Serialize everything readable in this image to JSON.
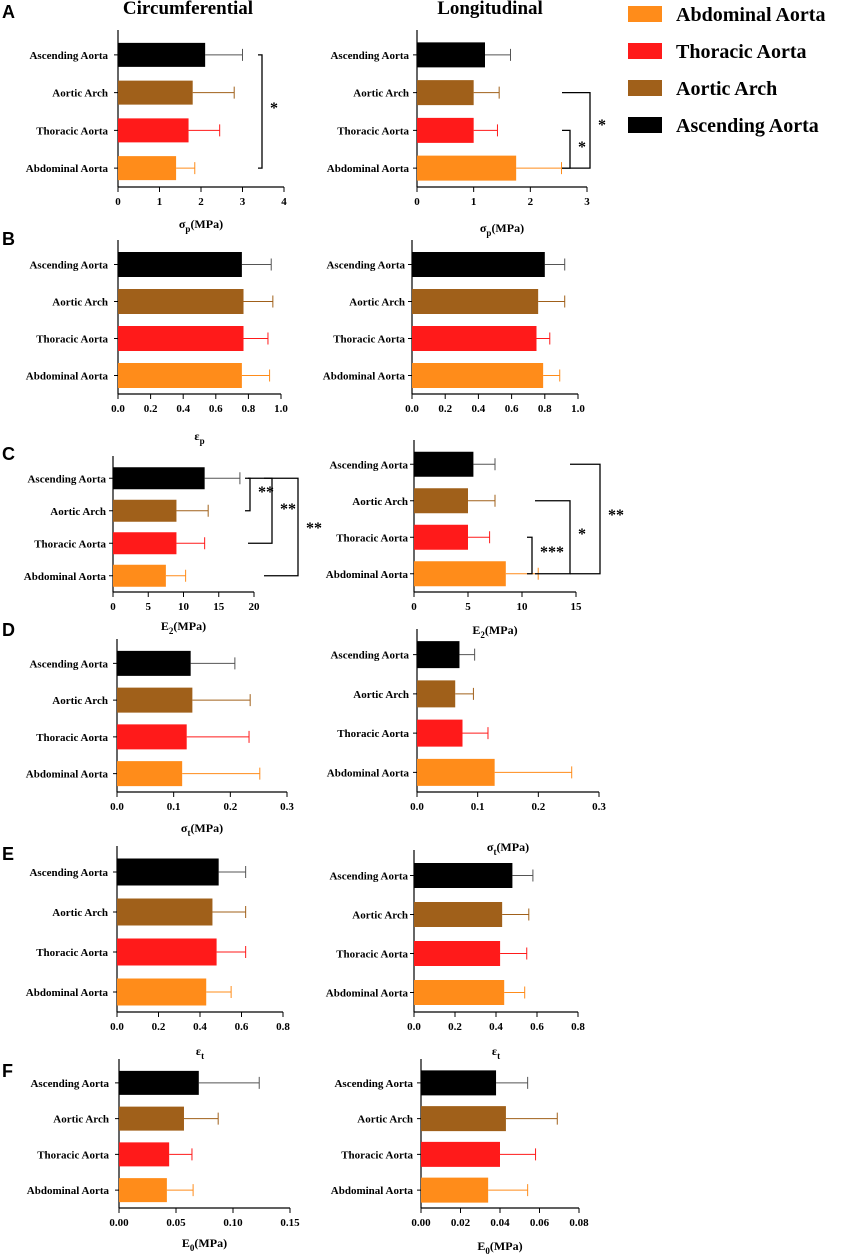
{
  "column_headers": {
    "circumferential": "Circumferential",
    "longitudinal": "Longitudinal"
  },
  "legend": [
    {
      "label": "Abdominal Aorta",
      "color": "#ff8c1a"
    },
    {
      "label": "Thoracic Aorta",
      "color": "#ff1a1a"
    },
    {
      "label": "Aortic Arch",
      "color": "#a0601a"
    },
    {
      "label": "Ascending Aorta",
      "color": "#000000"
    }
  ],
  "chart_data": [
    {
      "type": "bar",
      "orientation": "horizontal",
      "panel": "A",
      "xlabel_main": "σ",
      "xlabel_sub": "p",
      "xlabel_tail": "(MPa)",
      "categories": [
        "Ascending Aorta",
        "Aortic Arch",
        "Thoracic Aorta",
        "Abdominal Aorta"
      ],
      "values": [
        2.1,
        1.8,
        1.7,
        1.4
      ],
      "errors": [
        0.9,
        1.0,
        0.75,
        0.45
      ],
      "xlim": [
        0,
        4
      ],
      "ticks": [
        "0",
        "1",
        "2",
        "3",
        "4"
      ],
      "significance": [
        {
          "from": 0,
          "to": 3,
          "label": "*"
        }
      ]
    },
    {
      "type": "bar",
      "orientation": "horizontal",
      "panel": "",
      "xlabel_main": "σ",
      "xlabel_sub": "p",
      "xlabel_tail": "(MPa)",
      "categories": [
        "Ascending Aorta",
        "Aortic Arch",
        "Thoracic Aorta",
        "Abdominal Aorta"
      ],
      "values": [
        1.2,
        1.0,
        1.0,
        1.75
      ],
      "errors": [
        0.45,
        0.45,
        0.42,
        0.8
      ],
      "xlim": [
        0,
        3
      ],
      "ticks": [
        "0",
        "1",
        "2",
        "3"
      ],
      "significance": [
        {
          "from": 1,
          "to": 3,
          "label": "*"
        },
        {
          "from": 2,
          "to": 3,
          "label": "*"
        }
      ]
    },
    {
      "type": "bar",
      "orientation": "horizontal",
      "panel": "B",
      "xlabel_main": "ε",
      "xlabel_sub": "p",
      "xlabel_tail": "",
      "categories": [
        "Ascending Aorta",
        "Aortic Arch",
        "Thoracic Aorta",
        "Abdominal Aorta"
      ],
      "values": [
        0.76,
        0.77,
        0.77,
        0.76
      ],
      "errors": [
        0.18,
        0.18,
        0.15,
        0.17
      ],
      "xlim": [
        0,
        1
      ],
      "ticks": [
        "0.0",
        "0.2",
        "0.4",
        "0.6",
        "0.8",
        "1.0"
      ],
      "significance": []
    },
    {
      "type": "bar",
      "orientation": "horizontal",
      "panel": "",
      "xlabel_main": "",
      "xlabel_sub": "",
      "xlabel_tail": "",
      "categories": [
        "Ascending Aorta",
        "Aortic Arch",
        "Thoracic Aorta",
        "Abdominal Aorta"
      ],
      "values": [
        0.8,
        0.76,
        0.75,
        0.79
      ],
      "errors": [
        0.12,
        0.16,
        0.08,
        0.1
      ],
      "xlim": [
        0,
        1
      ],
      "ticks": [
        "0.0",
        "0.2",
        "0.4",
        "0.6",
        "0.8",
        "1.0"
      ],
      "significance": []
    },
    {
      "type": "bar",
      "orientation": "horizontal",
      "panel": "C",
      "xlabel_main": "E",
      "xlabel_sub": "2",
      "xlabel_tail": "(MPa)",
      "categories": [
        "Ascending Aorta",
        "Aortic Arch",
        "Thoracic Aorta",
        "Abdominal Aorta"
      ],
      "values": [
        13,
        9,
        9,
        7.5
      ],
      "errors": [
        5,
        4.5,
        4,
        2.8
      ],
      "xlim": [
        0,
        20
      ],
      "ticks": [
        "0",
        "5",
        "10",
        "15",
        "20"
      ],
      "significance": [
        {
          "from": 0,
          "to": 1,
          "label": "**"
        },
        {
          "from": 0,
          "to": 2,
          "label": "**"
        },
        {
          "from": 0,
          "to": 3,
          "label": "**"
        }
      ]
    },
    {
      "type": "bar",
      "orientation": "horizontal",
      "panel": "",
      "xlabel_main": "E",
      "xlabel_sub": "2",
      "xlabel_tail": "(MPa)",
      "categories": [
        "Ascending Aorta",
        "Aortic Arch",
        "Thoracic Aorta",
        "Abdominal Aorta"
      ],
      "values": [
        5.5,
        5,
        5,
        8.5
      ],
      "errors": [
        2,
        2.5,
        2,
        3
      ],
      "xlim": [
        0,
        15
      ],
      "ticks": [
        "0",
        "5",
        "10",
        "15"
      ],
      "significance": [
        {
          "from": 2,
          "to": 3,
          "label": "***"
        },
        {
          "from": 1,
          "to": 3,
          "label": "*"
        },
        {
          "from": 0,
          "to": 3,
          "label": "**"
        }
      ]
    },
    {
      "type": "bar",
      "orientation": "horizontal",
      "panel": "D",
      "xlabel_main": "σ",
      "xlabel_sub": "t",
      "xlabel_tail": "(MPa)",
      "categories": [
        "Ascending Aorta",
        "Aortic Arch",
        "Thoracic Aorta",
        "Abdominal Aorta"
      ],
      "values": [
        0.13,
        0.133,
        0.123,
        0.115
      ],
      "errors": [
        0.078,
        0.102,
        0.11,
        0.137
      ],
      "xlim": [
        0,
        0.3
      ],
      "ticks": [
        "0.0",
        "0.1",
        "0.2",
        "0.3"
      ],
      "significance": []
    },
    {
      "type": "bar",
      "orientation": "horizontal",
      "panel": "",
      "xlabel_main": "σ",
      "xlabel_sub": "t",
      "xlabel_tail": "(MPa)",
      "categories": [
        "Ascending Aorta",
        "Aortic Arch",
        "Thoracic Aorta",
        "Abdominal Aorta"
      ],
      "values": [
        0.07,
        0.063,
        0.075,
        0.128
      ],
      "errors": [
        0.025,
        0.03,
        0.042,
        0.127
      ],
      "xlim": [
        0,
        0.3
      ],
      "ticks": [
        "0.0",
        "0.1",
        "0.2",
        "0.3"
      ],
      "significance": []
    },
    {
      "type": "bar",
      "orientation": "horizontal",
      "panel": "E",
      "xlabel_main": "ε",
      "xlabel_sub": "t",
      "xlabel_tail": "",
      "categories": [
        "Ascending Aorta",
        "Aortic Arch",
        "Thoracic Aorta",
        "Abdominal Aorta"
      ],
      "values": [
        0.49,
        0.46,
        0.48,
        0.43
      ],
      "errors": [
        0.13,
        0.16,
        0.14,
        0.12
      ],
      "xlim": [
        0,
        0.8
      ],
      "ticks": [
        "0.0",
        "0.2",
        "0.4",
        "0.6",
        "0.8"
      ],
      "significance": []
    },
    {
      "type": "bar",
      "orientation": "horizontal",
      "panel": "",
      "xlabel_main": "ε",
      "xlabel_sub": "t",
      "xlabel_tail": "",
      "categories": [
        "Ascending Aorta",
        "Aortic Arch",
        "Thoracic Aorta",
        "Abdominal Aorta"
      ],
      "values": [
        0.48,
        0.43,
        0.42,
        0.44
      ],
      "errors": [
        0.1,
        0.13,
        0.13,
        0.1
      ],
      "xlim": [
        0,
        0.8
      ],
      "ticks": [
        "0.0",
        "0.2",
        "0.4",
        "0.6",
        "0.8"
      ],
      "significance": []
    },
    {
      "type": "bar",
      "orientation": "horizontal",
      "panel": "F",
      "xlabel_main": "E",
      "xlabel_sub": "0",
      "xlabel_tail": "(MPa)",
      "categories": [
        "Ascending Aorta",
        "Aortic Arch",
        "Thoracic Aorta",
        "Abdominal Aorta"
      ],
      "values": [
        0.07,
        0.057,
        0.044,
        0.042
      ],
      "errors": [
        0.053,
        0.03,
        0.02,
        0.023
      ],
      "xlim": [
        0,
        0.15
      ],
      "ticks": [
        "0.00",
        "0.05",
        "0.10",
        "0.15"
      ],
      "significance": []
    },
    {
      "type": "bar",
      "orientation": "horizontal",
      "panel": "",
      "xlabel_main": "E",
      "xlabel_sub": "0",
      "xlabel_tail": "(MPa)",
      "categories": [
        "Ascending Aorta",
        "Aortic Arch",
        "Thoracic Aorta",
        "Abdominal Aorta"
      ],
      "values": [
        0.038,
        0.043,
        0.04,
        0.034
      ],
      "errors": [
        0.016,
        0.026,
        0.018,
        0.02
      ],
      "xlim": [
        0,
        0.08
      ],
      "ticks": [
        "0.00",
        "0.02",
        "0.04",
        "0.06",
        "0.08"
      ],
      "significance": []
    }
  ]
}
